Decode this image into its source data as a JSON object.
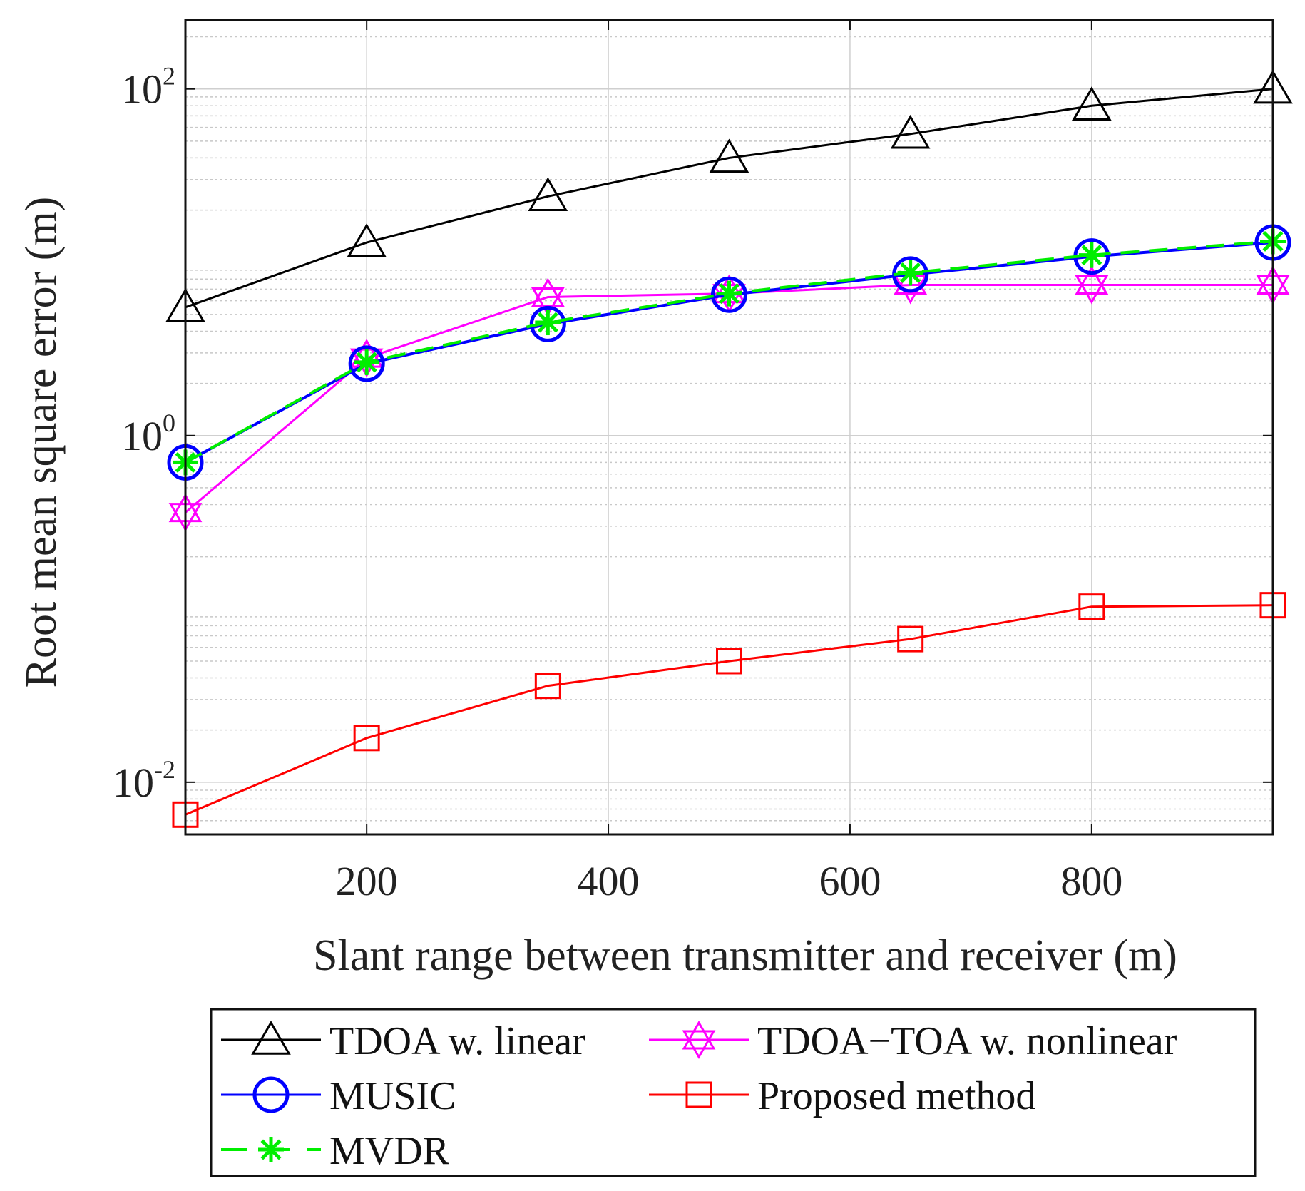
{
  "chart_data": {
    "type": "line",
    "xlabel": "Slant range between transmitter and receiver (m)",
    "ylabel": "Root mean square error (m)",
    "yscale": "log",
    "xlim": [
      50,
      950
    ],
    "ylim": [
      0.005,
      250
    ],
    "grid": true,
    "legend_position": "bottom-outside",
    "x_ticks": [
      {
        "value": 200,
        "label": "200"
      },
      {
        "value": 400,
        "label": "400"
      },
      {
        "value": 600,
        "label": "600"
      },
      {
        "value": 800,
        "label": "800"
      }
    ],
    "y_ticks": [
      {
        "value": 0.01,
        "base": "10",
        "exp": "-2"
      },
      {
        "value": 1,
        "base": "10",
        "exp": "0"
      },
      {
        "value": 100,
        "base": "10",
        "exp": "2"
      }
    ],
    "x": [
      50,
      200,
      350,
      500,
      650,
      800,
      950
    ],
    "series": [
      {
        "name": "TDOA w. linear",
        "color": "#000000",
        "marker": "triangle",
        "dash": "solid",
        "values": [
          5.5,
          13,
          24,
          40,
          55,
          80,
          100
        ]
      },
      {
        "name": "MUSIC",
        "color": "#0000ff",
        "marker": "circle",
        "dash": "solid",
        "values": [
          0.7,
          2.6,
          4.4,
          6.5,
          8.5,
          10.8,
          13.0
        ]
      },
      {
        "name": "MVDR",
        "color": "#00ee00",
        "marker": "asterisk",
        "dash": "dashed",
        "values": [
          0.7,
          2.65,
          4.5,
          6.6,
          8.7,
          11.0,
          13.2
        ]
      },
      {
        "name": "TDOA−TOA w. nonlinear",
        "color": "#ff00ff",
        "marker": "hexagram",
        "dash": "solid",
        "values": [
          0.36,
          2.8,
          6.3,
          6.6,
          7.4,
          7.4,
          7.4
        ]
      },
      {
        "name": "Proposed method",
        "color": "#ff0000",
        "marker": "square",
        "dash": "solid",
        "values": [
          0.0065,
          0.018,
          0.036,
          0.05,
          0.067,
          0.103,
          0.105
        ]
      }
    ]
  }
}
